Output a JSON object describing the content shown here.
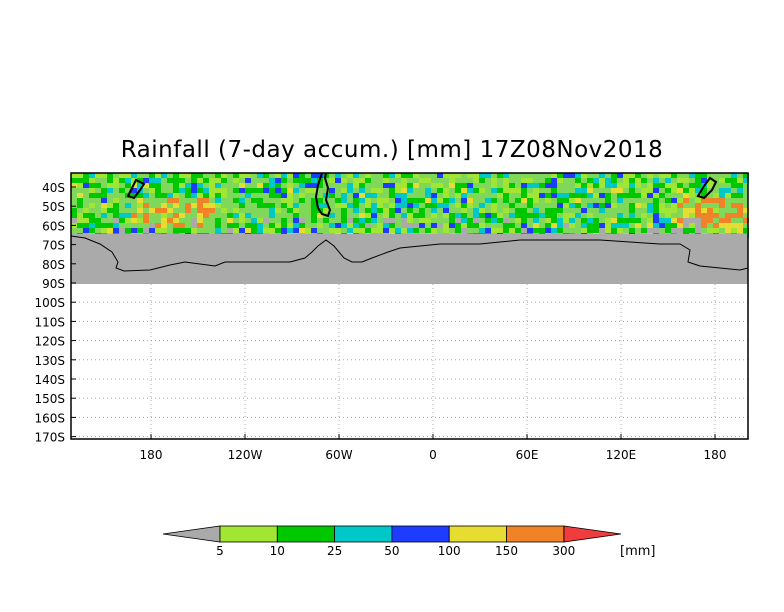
{
  "title": "Rainfall (7-day accum.) [mm] 17Z08Nov2018",
  "map": {
    "lat_labels": [
      "40S",
      "50S",
      "60S",
      "70S",
      "80S",
      "90S",
      "100S",
      "110S",
      "120S",
      "130S",
      "140S",
      "150S",
      "160S",
      "170S"
    ],
    "lon_labels": [
      "180",
      "120W",
      "60W",
      "0",
      "60E",
      "120E",
      "180"
    ],
    "land_color": "#aaaaaa",
    "grid": "dotted"
  },
  "legend": {
    "bins": [
      {
        "color": "#a0e632"
      },
      {
        "color": "#00c800"
      },
      {
        "color": "#00c8c8"
      },
      {
        "color": "#1e3cff"
      },
      {
        "color": "#e6dc32"
      },
      {
        "color": "#f08228"
      },
      {
        "color": "#f03c3c"
      }
    ],
    "left_cap_color": "#aaaaaa",
    "labels": [
      "5",
      "10",
      "25",
      "50",
      "100",
      "150",
      "300"
    ],
    "unit": "[mm]"
  }
}
